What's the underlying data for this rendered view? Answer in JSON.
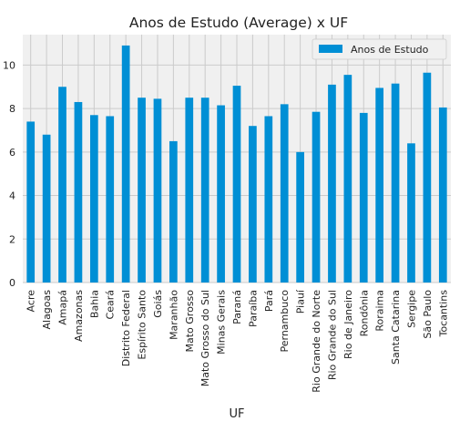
{
  "chart_data": {
    "type": "bar",
    "title": "Anos de Estudo (Average) x UF",
    "xlabel": "UF",
    "ylabel": "",
    "ylim": [
      0,
      11.4
    ],
    "yticks": [
      0,
      2,
      4,
      6,
      8,
      10
    ],
    "grid": true,
    "legend_position": "top-right",
    "colors": {
      "bar": "#008fd5",
      "plot_bg": "#f0f0f0",
      "grid": "#cbcbcb",
      "text": "#222222"
    },
    "categories": [
      "Acre",
      "Alagoas",
      "Amapá",
      "Amazonas",
      "Bahia",
      "Ceará",
      "Distrito Federal",
      "Espírito Santo",
      "Goiás",
      "Maranhão",
      "Mato Grosso",
      "Mato Grosso do Sul",
      "Minas Gerais",
      "Paraná",
      "Paraíba",
      "Pará",
      "Pernambuco",
      "Piauí",
      "Rio Grande do Norte",
      "Rio Grande do Sul",
      "Rio de Janeiro",
      "Rondônia",
      "Roraima",
      "Santa Catarina",
      "Sergipe",
      "São Paulo",
      "Tocantins"
    ],
    "series": [
      {
        "name": "Anos de Estudo",
        "values": [
          7.4,
          6.8,
          9.0,
          8.3,
          7.7,
          7.65,
          10.9,
          8.5,
          8.45,
          6.5,
          8.5,
          8.5,
          8.15,
          9.05,
          7.2,
          7.65,
          8.2,
          6.0,
          7.85,
          9.1,
          9.55,
          7.8,
          8.95,
          9.15,
          6.4,
          9.65,
          8.05
        ]
      }
    ]
  }
}
